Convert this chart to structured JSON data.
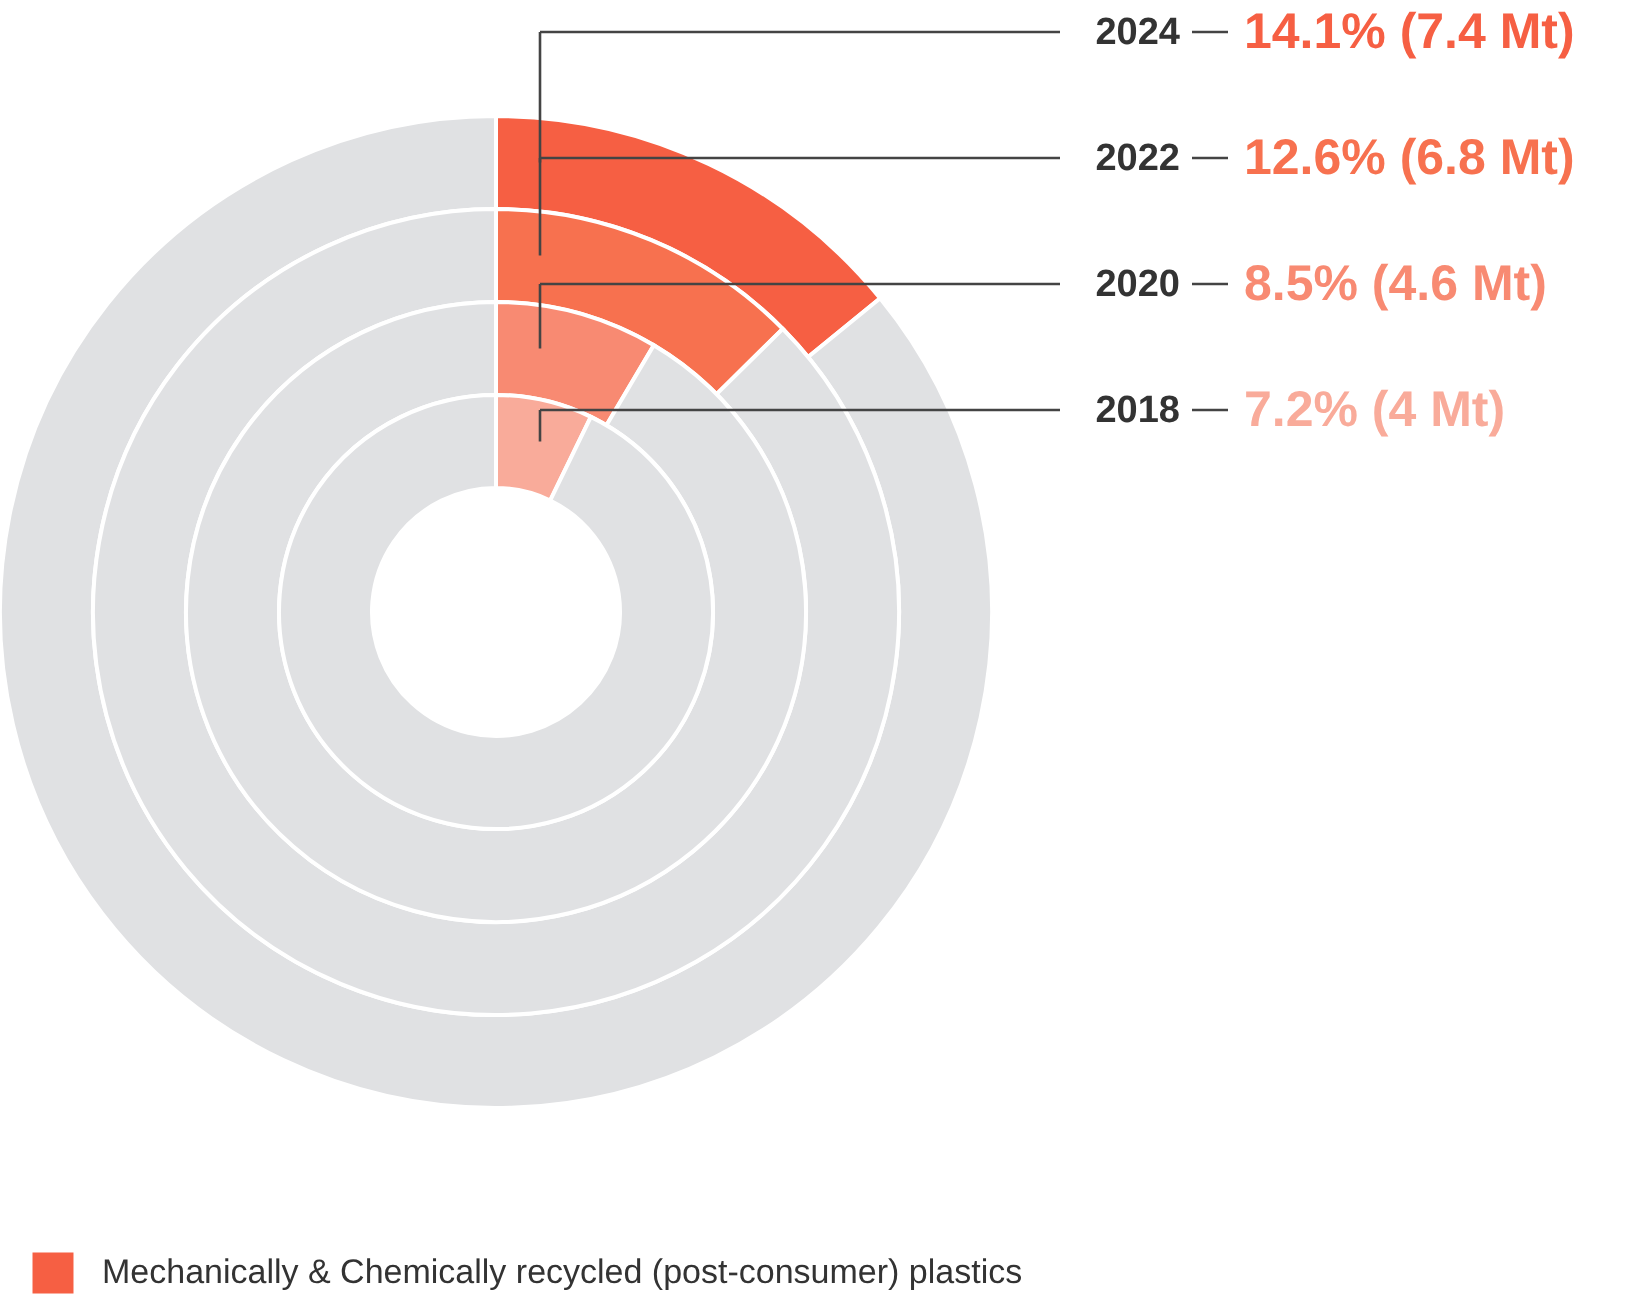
{
  "chart_data": [
    {
      "type": "donut",
      "categories": [
        "Mechanically & Chemically recycled (post-consumer) plastics",
        null
      ],
      "legend": "bottom left",
      "annotations": [
        "14.1% (7.4 Mt)"
      ],
      "series": [
        {
          "name": "2024",
          "values": [
            14.1,
            85.9
          ],
          "colors": [
            "#f65f43",
            "#e0e1e3"
          ]
        }
      ]
    },
    {
      "type": "donut",
      "categories": [
        null,
        null
      ],
      "annotations": [
        "12.6% (6.8 Mt)"
      ],
      "series": [
        {
          "name": "2022",
          "values": [
            12.6,
            87.4
          ],
          "colors": [
            "#f7714f",
            "#e0e1e3"
          ]
        }
      ]
    },
    {
      "type": "donut",
      "categories": [
        null,
        null
      ],
      "annotations": [
        "8.5% (4.6 Mt)"
      ],
      "series": [
        {
          "name": "2020",
          "values": [
            8.5,
            91.5
          ],
          "colors": [
            "#f88a72",
            "#e0e1e3"
          ]
        }
      ]
    },
    {
      "type": "donut",
      "categories": [
        null,
        null
      ],
      "annotations": [
        "7.2% (4 Mt)"
      ],
      "series": [
        {
          "name": "2018",
          "values": [
            7.2,
            92.8
          ],
          "colors": [
            "#f9ab9a",
            "#e0e1e3"
          ]
        }
      ]
    }
  ]
}
